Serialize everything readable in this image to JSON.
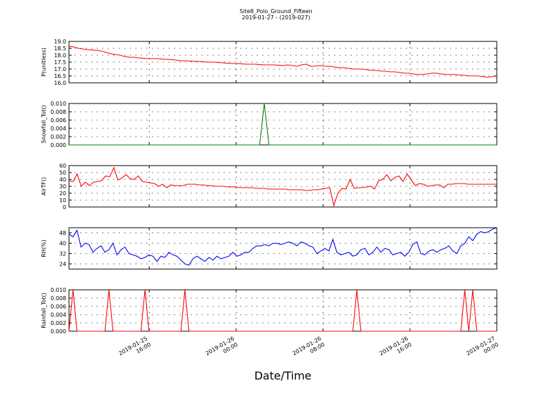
{
  "title": "Site8_Polo_Ground_Fifteen",
  "subtitle": "2019-01-27 - (2019-027)",
  "xlabel": "Date/Time",
  "x_ticks": [
    {
      "date": "2019-01-25",
      "time": "16:00",
      "x": 0.1875
    },
    {
      "date": "2019-01-26",
      "time": "00:00",
      "x": 0.3906
    },
    {
      "date": "2019-01-26",
      "time": "08:00",
      "x": 0.5938
    },
    {
      "date": "2019-01-26",
      "time": "16:00",
      "x": 0.7969
    },
    {
      "date": "2019-01-27",
      "time": "00:00",
      "x": 1.0
    }
  ],
  "colors": {
    "red": "#ff0000",
    "green": "#008000",
    "blue": "#0000ff"
  },
  "chart_data": [
    {
      "type": "line",
      "ylabel": "P(unitless)",
      "ylim": [
        16.0,
        19.0
      ],
      "yticks": [
        "16.0",
        "16.5",
        "17.0",
        "17.5",
        "18.0",
        "18.5",
        "19.0"
      ],
      "color": "#ff0000",
      "series": [
        {
          "values": [
            18.65,
            18.6,
            18.5,
            18.45,
            18.4,
            18.38,
            18.35,
            18.3,
            18.2,
            18.1,
            18.05,
            18.0,
            17.9,
            17.85,
            17.85,
            17.8,
            17.78,
            17.75,
            17.75,
            17.75,
            17.72,
            17.7,
            17.68,
            17.65,
            17.6,
            17.6,
            17.58,
            17.55,
            17.55,
            17.52,
            17.5,
            17.5,
            17.48,
            17.45,
            17.42,
            17.4,
            17.4,
            17.38,
            17.35,
            17.35,
            17.35,
            17.32,
            17.3,
            17.3,
            17.3,
            17.28,
            17.25,
            17.3,
            17.25,
            17.2,
            17.3,
            17.35,
            17.2,
            17.2,
            17.25,
            17.2,
            17.2,
            17.15,
            17.1,
            17.1,
            17.05,
            17.0,
            17.0,
            17.0,
            16.95,
            16.9,
            16.9,
            16.85,
            16.85,
            16.8,
            16.8,
            16.75,
            16.7,
            16.7,
            16.65,
            16.6,
            16.6,
            16.65,
            16.7,
            16.7,
            16.65,
            16.6,
            16.6,
            16.6,
            16.55,
            16.55,
            16.5,
            16.5,
            16.5,
            16.45,
            16.4,
            16.45,
            16.5
          ]
        }
      ]
    },
    {
      "type": "line",
      "ylabel": "Snowfall_Tot()",
      "ylim": [
        0.0,
        0.01
      ],
      "yticks": [
        "0.000",
        "0.002",
        "0.004",
        "0.006",
        "0.008",
        "0.010"
      ],
      "color": "#008000",
      "series": [
        {
          "values": [
            0,
            0,
            0,
            0,
            0,
            0,
            0,
            0,
            0,
            0,
            0,
            0,
            0,
            0,
            0,
            0,
            0,
            0,
            0,
            0,
            0,
            0,
            0,
            0,
            0,
            0,
            0,
            0,
            0,
            0,
            0,
            0,
            0,
            0,
            0,
            0,
            0,
            0,
            0,
            0,
            0,
            0,
            0.01,
            0,
            0,
            0,
            0,
            0,
            0,
            0,
            0,
            0,
            0,
            0,
            0,
            0,
            0,
            0,
            0,
            0,
            0,
            0,
            0,
            0,
            0,
            0,
            0,
            0,
            0,
            0,
            0,
            0,
            0,
            0,
            0,
            0,
            0,
            0,
            0,
            0,
            0,
            0,
            0,
            0,
            0,
            0,
            0,
            0,
            0,
            0,
            0,
            0,
            0
          ]
        }
      ],
      "x": [
        0,
        0.05,
        0.1,
        0.15,
        0.2,
        0.25,
        0.3,
        0.35,
        0.4,
        0.45,
        0.5,
        0.55,
        0.6,
        0.65,
        0.7,
        0.75,
        0.8,
        0.85,
        0.9,
        0.95,
        1.0,
        1.05,
        1.1,
        1.15,
        1.2,
        1.25,
        1.3,
        1.35,
        1.4,
        1.45,
        1.5,
        1.55,
        1.6,
        1.65,
        1.7,
        1.75,
        1.8,
        1.85,
        1.9,
        1.95,
        2.0,
        2.05,
        2.1,
        2.15,
        2.2,
        2.25,
        2.3,
        2.35,
        2.4,
        2.45,
        2.5,
        2.55,
        2.6,
        2.65,
        2.7,
        2.75,
        2.8,
        2.85,
        2.9,
        2.95,
        3.0,
        3.05,
        3.1,
        3.15,
        3.2,
        3.25,
        3.3,
        3.35,
        3.4,
        3.45,
        3.5,
        3.55,
        3.6,
        3.65,
        3.7,
        3.75,
        3.8,
        3.85,
        3.9,
        3.95,
        4.0,
        4.05,
        4.1,
        4.15,
        4.2,
        4.25,
        4.3,
        4.35,
        4.4,
        4.45,
        4.5,
        4.55,
        4.6
      ]
    },
    {
      "type": "line",
      "ylabel": "AirTF()",
      "ylim": [
        0,
        60
      ],
      "yticks": [
        "0",
        "10",
        "20",
        "30",
        "40",
        "50",
        "60"
      ],
      "color": "#ff0000",
      "series": [
        {
          "values": [
            38,
            37,
            48,
            30,
            36,
            31,
            36,
            37,
            38,
            45,
            44,
            57,
            39,
            42,
            47,
            41,
            40,
            45,
            37,
            36,
            35,
            34,
            30,
            33,
            28,
            32,
            31,
            31,
            31,
            33,
            33,
            33,
            32,
            32,
            31,
            31,
            30,
            30,
            30,
            29,
            29,
            29,
            28,
            28,
            28,
            28,
            27,
            27,
            27,
            26,
            26,
            26,
            26,
            26,
            25,
            25,
            25,
            25,
            24,
            24,
            25,
            25,
            26,
            27,
            28,
            2,
            20,
            27,
            26,
            40,
            27,
            28,
            28,
            29,
            30,
            26,
            38,
            40,
            47,
            38,
            43,
            45,
            37,
            48,
            39,
            31,
            34,
            33,
            30,
            31,
            32,
            32,
            28,
            33,
            33,
            34,
            34,
            34,
            33,
            33,
            33,
            33,
            33,
            33,
            33,
            33
          ]
        }
      ]
    },
    {
      "type": "line",
      "ylabel": "RH(%)",
      "ylim": [
        20,
        52
      ],
      "yticks": [
        "24",
        "32",
        "40",
        "48"
      ],
      "color": "#0000ff",
      "series": [
        {
          "values": [
            47,
            45,
            50,
            37,
            40,
            39,
            33,
            36,
            38,
            33,
            35,
            40,
            31,
            35,
            37,
            32,
            31,
            30,
            28,
            29,
            31,
            30,
            26,
            30,
            29,
            33,
            31,
            30,
            27,
            24,
            23,
            28,
            30,
            28,
            26,
            29,
            27,
            30,
            28,
            29,
            30,
            33,
            30,
            31,
            33,
            33,
            36,
            38,
            38,
            39,
            38,
            40,
            40,
            39,
            40,
            41,
            40,
            38,
            41,
            40,
            38,
            37,
            32,
            34,
            36,
            34,
            43,
            33,
            31,
            32,
            33,
            30,
            31,
            35,
            36,
            31,
            33,
            37,
            33,
            36,
            35,
            31,
            32,
            33,
            30,
            33,
            39,
            41,
            32,
            31,
            34,
            35,
            33,
            35,
            36,
            38,
            34,
            32,
            38,
            40,
            45,
            42,
            47,
            49,
            48,
            49,
            51,
            52
          ]
        }
      ]
    },
    {
      "type": "line",
      "ylabel": "Rainfall_Tot()",
      "ylim": [
        0.0,
        0.01
      ],
      "yticks": [
        "0.000",
        "0.002",
        "0.004",
        "0.006",
        "0.008",
        "0.010"
      ],
      "color": "#ff0000",
      "series": [
        {
          "values": [
            0,
            0.01,
            0,
            0,
            0,
            0,
            0,
            0,
            0,
            0,
            0.01,
            0,
            0,
            0,
            0,
            0,
            0,
            0,
            0,
            0.01,
            0,
            0,
            0,
            0,
            0,
            0,
            0,
            0,
            0,
            0.01,
            0,
            0,
            0,
            0,
            0,
            0,
            0,
            0,
            0,
            0,
            0,
            0,
            0,
            0,
            0,
            0,
            0,
            0,
            0,
            0,
            0,
            0,
            0,
            0,
            0,
            0,
            0,
            0,
            0,
            0,
            0,
            0,
            0,
            0,
            0,
            0,
            0,
            0,
            0,
            0,
            0,
            0,
            0.01,
            0,
            0,
            0,
            0,
            0,
            0,
            0,
            0,
            0,
            0,
            0,
            0,
            0,
            0,
            0,
            0,
            0,
            0,
            0,
            0,
            0,
            0,
            0,
            0,
            0,
            0,
            0.01,
            0,
            0.01,
            0,
            0,
            0,
            0,
            0,
            0
          ]
        }
      ]
    }
  ]
}
